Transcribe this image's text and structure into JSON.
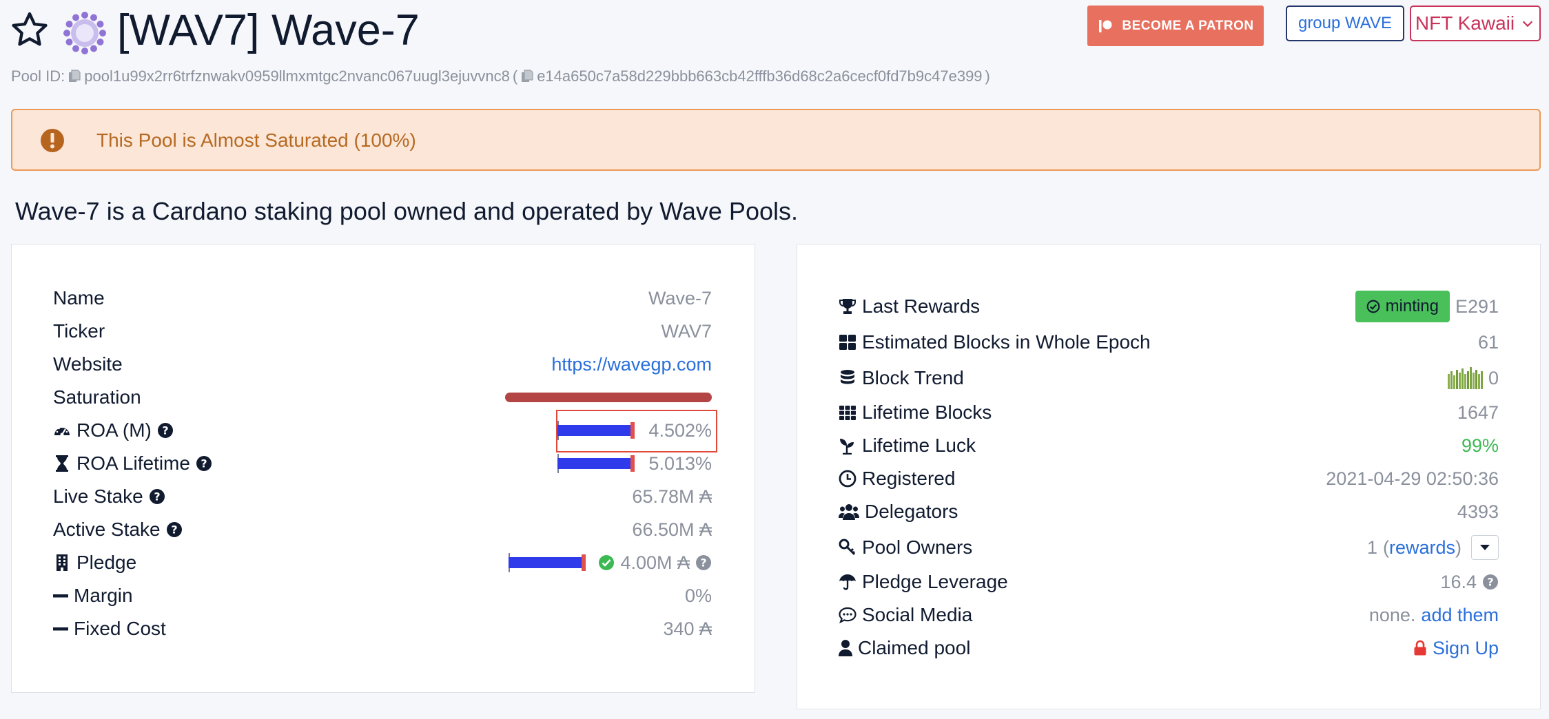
{
  "header": {
    "title": "[WAV7] Wave-7",
    "patron_label": "BECOME A PATRON",
    "group_label": "group WAVE",
    "nft_label": "NFT Kawaii"
  },
  "pool_id": {
    "label": "Pool ID:",
    "bech32": "pool1u99x2rr6trfznwakv0959llmxmtgc2nvanc067uugl3ejuvvnc8",
    "open_paren": "(",
    "hex": "e14a650c7a58d229bbb663cb42fffb36d68c2a6cecf0fd7b9c47e399",
    "close_paren": ")"
  },
  "alert": {
    "text": "This Pool is Almost Saturated (100%)"
  },
  "description": "Wave-7 is a Cardano staking pool owned and operated by Wave Pools.",
  "left": {
    "name": {
      "label": "Name",
      "value": "Wave-7"
    },
    "ticker": {
      "label": "Ticker",
      "value": "WAV7"
    },
    "website": {
      "label": "Website",
      "value": "https://wavegp.com"
    },
    "saturation": {
      "label": "Saturation",
      "fraction": 1.0
    },
    "roa_m": {
      "label": "ROA (M)",
      "value": "4.502%"
    },
    "roa_lifetime": {
      "label": "ROA Lifetime",
      "value": "5.013%"
    },
    "live_stake": {
      "label": "Live Stake",
      "value": "65.78M ₳"
    },
    "active_stake": {
      "label": "Active Stake",
      "value": "66.50M ₳"
    },
    "pledge": {
      "label": "Pledge",
      "value": "4.00M ₳"
    },
    "margin": {
      "label": "Margin",
      "value": "0%"
    },
    "fixed_cost": {
      "label": "Fixed Cost",
      "value": "340 ₳"
    }
  },
  "right": {
    "last_rewards": {
      "label": "Last Rewards",
      "badge": "minting",
      "value": "E291"
    },
    "est_blocks": {
      "label": "Estimated Blocks in Whole Epoch",
      "value": "61"
    },
    "block_trend": {
      "label": "Block Trend",
      "value": "0"
    },
    "lifetime_blocks": {
      "label": "Lifetime Blocks",
      "value": "1647"
    },
    "lifetime_luck": {
      "label": "Lifetime Luck",
      "value": "99%"
    },
    "registered": {
      "label": "Registered",
      "value": "2021-04-29 02:50:36"
    },
    "delegators": {
      "label": "Delegators",
      "value": "4393"
    },
    "pool_owners": {
      "label": "Pool Owners",
      "count": "1",
      "open": "(",
      "link": "rewards",
      "close": ")"
    },
    "pledge_leverage": {
      "label": "Pledge Leverage",
      "value": "16.4"
    },
    "social_media": {
      "label": "Social Media",
      "value": "none.",
      "link": "add them"
    },
    "claimed_pool": {
      "label": "Claimed pool",
      "link": "Sign Up"
    }
  },
  "colors": {
    "accent_blue": "#2a6fdb",
    "patron": "#e8705f",
    "alert_bg": "#fbe6d8",
    "alert_text": "#b66a22",
    "saturation": "#b44545",
    "bar_blue": "#2f3aeb",
    "minting_green": "#49c05a"
  }
}
